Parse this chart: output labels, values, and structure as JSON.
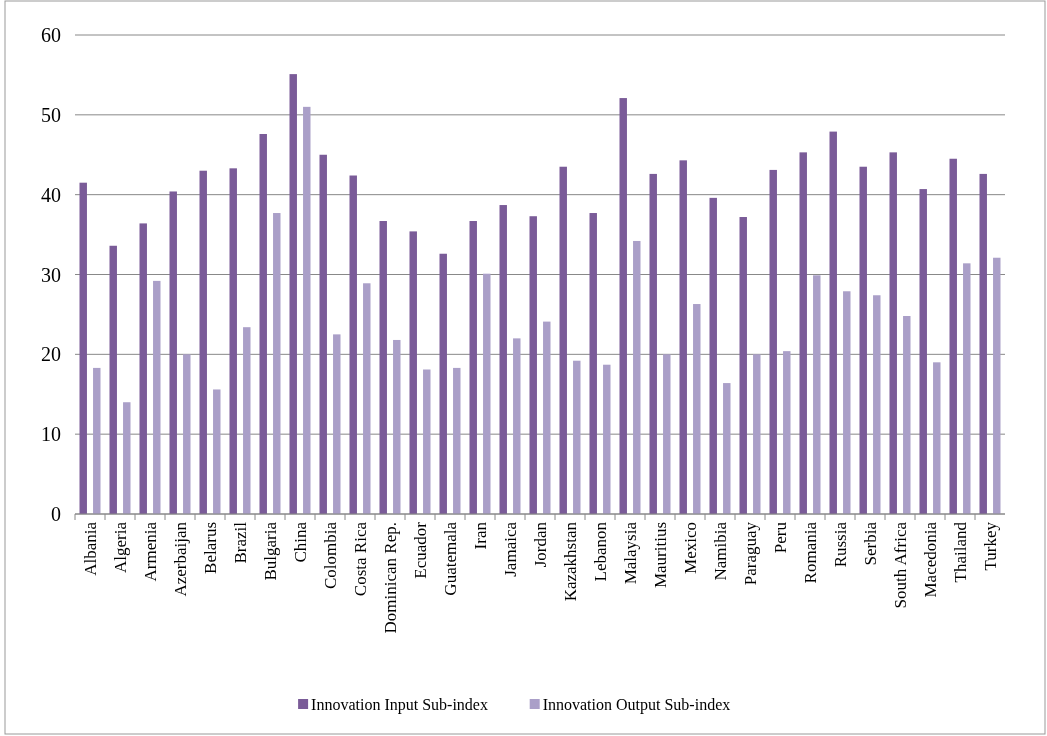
{
  "chart_data": {
    "type": "bar",
    "categories": [
      "Albania",
      "Algeria",
      "Armenia",
      "Azerbaijan",
      "Belarus",
      "Brazil",
      "Bulgaria",
      "China",
      "Colombia",
      "Costa Rica",
      "Dominican Rep.",
      "Ecuador",
      "Guatemala",
      "Iran",
      "Jamaica",
      "Jordan",
      "Kazakhstan",
      "Lebanon",
      "Malaysia",
      "Mauritius",
      "Mexico",
      "Namibia",
      "Paraguay",
      "Peru",
      "Romania",
      "Russia",
      "Serbia",
      "South Africa",
      "Macedonia",
      "Thailand",
      "Turkey"
    ],
    "series": [
      {
        "name": "Innovation Input Sub-index",
        "color": "#7a5b98",
        "values": [
          41.5,
          33.6,
          36.4,
          40.4,
          43.0,
          43.3,
          47.6,
          55.1,
          45.0,
          42.4,
          36.7,
          35.4,
          32.6,
          36.7,
          38.7,
          37.3,
          43.5,
          37.7,
          52.1,
          42.6,
          44.3,
          39.6,
          37.2,
          43.1,
          45.3,
          47.9,
          43.5,
          45.3,
          40.7,
          44.5,
          42.6
        ]
      },
      {
        "name": "Innovation Output Sub-index",
        "color": "#aa9fc8",
        "values": [
          18.3,
          14.0,
          29.2,
          20.0,
          15.6,
          23.4,
          37.7,
          51.0,
          22.5,
          28.9,
          21.8,
          18.1,
          18.3,
          30.1,
          22.0,
          24.1,
          19.2,
          18.7,
          34.2,
          20.0,
          26.3,
          16.4,
          20.0,
          20.4,
          29.9,
          27.9,
          27.4,
          24.8,
          19.0,
          31.4,
          32.1
        ]
      }
    ],
    "ylim": [
      0,
      60
    ],
    "yticks": [
      0,
      10,
      20,
      30,
      40,
      50,
      60
    ],
    "grid": "y",
    "legend": "bottom"
  }
}
